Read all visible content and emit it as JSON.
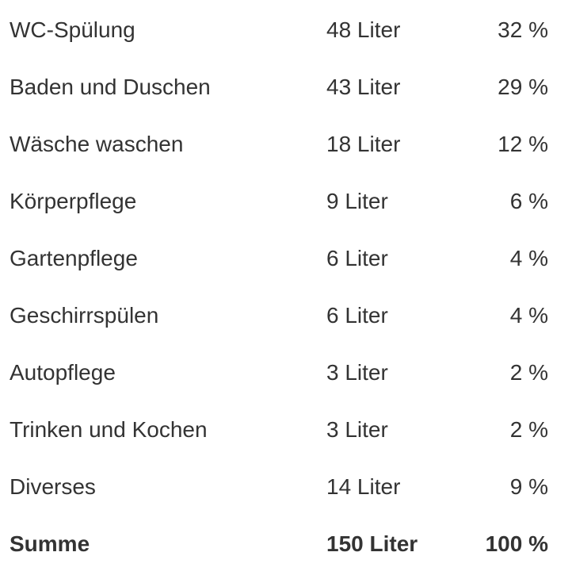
{
  "rows": [
    {
      "label": "WC-Spülung",
      "amount": "48 Liter",
      "percent": "32 %"
    },
    {
      "label": "Baden und Duschen",
      "amount": "43 Liter",
      "percent": "29 %"
    },
    {
      "label": "Wäsche waschen",
      "amount": "18 Liter",
      "percent": "12 %"
    },
    {
      "label": "Körperpflege",
      "amount": "9 Liter",
      "percent": "6 %"
    },
    {
      "label": "Gartenpflege",
      "amount": "6 Liter",
      "percent": "4 %"
    },
    {
      "label": "Geschirrspülen",
      "amount": "6 Liter",
      "percent": "4 %"
    },
    {
      "label": "Autopflege",
      "amount": "3 Liter",
      "percent": "2 %"
    },
    {
      "label": "Trinken und Kochen",
      "amount": "3 Liter",
      "percent": "2 %"
    },
    {
      "label": "Diverses",
      "amount": "14 Liter",
      "percent": "9 %"
    }
  ],
  "total": {
    "label": "Summe",
    "amount": "150 Liter",
    "percent": "100 %"
  }
}
